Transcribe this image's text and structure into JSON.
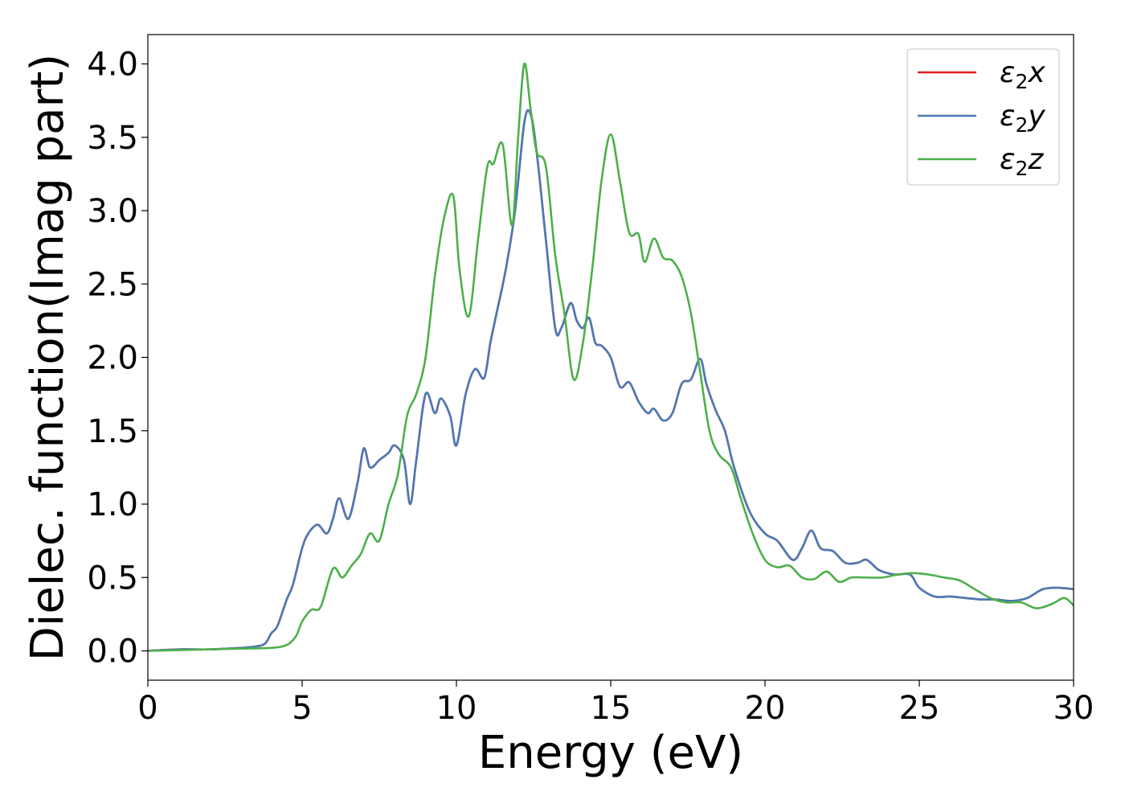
{
  "chart_data": {
    "type": "line",
    "xlabel": "Energy (eV)",
    "ylabel": "Dielec. function(Imag part)",
    "xlim": [
      0,
      30
    ],
    "ylim": [
      -0.2,
      4.2
    ],
    "xticks": [
      0,
      5,
      10,
      15,
      20,
      25,
      30
    ],
    "xtick_labels": [
      "0",
      "5",
      "10",
      "15",
      "20",
      "25",
      "30"
    ],
    "yticks": [
      0.0,
      0.5,
      1.0,
      1.5,
      2.0,
      2.5,
      3.0,
      3.5,
      4.0
    ],
    "ytick_labels": [
      "0.0",
      "0.5",
      "1.0",
      "1.5",
      "2.0",
      "2.5",
      "3.0",
      "3.5",
      "4.0"
    ],
    "grid": false,
    "legend_position": "top-right",
    "series": [
      {
        "name": "ε2x",
        "legend_base": "ε",
        "legend_sub": "2",
        "legend_var": "x",
        "color": "#e41a1c",
        "x": [
          0,
          1,
          2,
          3,
          3.5,
          3.8,
          4.0,
          4.2,
          4.5,
          4.7,
          5.0,
          5.2,
          5.5,
          5.8,
          6.0,
          6.2,
          6.5,
          6.8,
          7.0,
          7.2,
          7.5,
          7.8,
          8.0,
          8.3,
          8.5,
          8.7,
          9.0,
          9.3,
          9.5,
          9.8,
          10.0,
          10.3,
          10.6,
          10.9,
          11.1,
          11.3,
          11.6,
          11.9,
          12.2,
          12.4,
          12.6,
          12.9,
          13.2,
          13.4,
          13.7,
          13.9,
          14.1,
          14.3,
          14.5,
          14.7,
          15.0,
          15.3,
          15.6,
          15.9,
          16.2,
          16.4,
          16.7,
          17.0,
          17.3,
          17.6,
          17.9,
          18.1,
          18.4,
          18.7,
          19.0,
          19.5,
          20.0,
          20.4,
          20.9,
          21.2,
          21.5,
          21.8,
          22.2,
          22.6,
          23.0,
          23.3,
          23.7,
          24.2,
          24.7,
          25.0,
          25.5,
          26.0,
          26.5,
          27.0,
          27.5,
          28.0,
          28.5,
          29.0,
          29.5,
          30.0
        ],
        "y": [
          0,
          0.01,
          0.01,
          0.02,
          0.03,
          0.05,
          0.12,
          0.17,
          0.35,
          0.45,
          0.7,
          0.8,
          0.86,
          0.8,
          0.9,
          1.04,
          0.9,
          1.15,
          1.38,
          1.25,
          1.3,
          1.35,
          1.4,
          1.3,
          1.0,
          1.3,
          1.75,
          1.62,
          1.72,
          1.6,
          1.4,
          1.75,
          1.92,
          1.86,
          2.1,
          2.3,
          2.6,
          3.0,
          3.6,
          3.66,
          3.4,
          2.8,
          2.2,
          2.2,
          2.37,
          2.25,
          2.2,
          2.27,
          2.1,
          2.08,
          2.0,
          1.8,
          1.83,
          1.7,
          1.62,
          1.65,
          1.57,
          1.62,
          1.82,
          1.85,
          1.99,
          1.82,
          1.64,
          1.5,
          1.25,
          0.95,
          0.8,
          0.75,
          0.62,
          0.7,
          0.82,
          0.7,
          0.68,
          0.6,
          0.6,
          0.62,
          0.55,
          0.52,
          0.52,
          0.43,
          0.37,
          0.37,
          0.36,
          0.35,
          0.35,
          0.34,
          0.36,
          0.42,
          0.43,
          0.42
        ]
      },
      {
        "name": "ε2y",
        "legend_base": "ε",
        "legend_sub": "2",
        "legend_var": "y",
        "color": "#4a7ab5",
        "x": [
          0,
          1,
          2,
          3,
          3.5,
          3.8,
          4.0,
          4.2,
          4.5,
          4.7,
          5.0,
          5.2,
          5.5,
          5.8,
          6.0,
          6.2,
          6.5,
          6.8,
          7.0,
          7.2,
          7.5,
          7.8,
          8.0,
          8.3,
          8.5,
          8.7,
          9.0,
          9.3,
          9.5,
          9.8,
          10.0,
          10.3,
          10.6,
          10.9,
          11.1,
          11.3,
          11.6,
          11.9,
          12.2,
          12.4,
          12.6,
          12.9,
          13.2,
          13.4,
          13.7,
          13.9,
          14.1,
          14.3,
          14.5,
          14.7,
          15.0,
          15.3,
          15.6,
          15.9,
          16.2,
          16.4,
          16.7,
          17.0,
          17.3,
          17.6,
          17.9,
          18.1,
          18.4,
          18.7,
          19.0,
          19.5,
          20.0,
          20.4,
          20.9,
          21.2,
          21.5,
          21.8,
          22.2,
          22.6,
          23.0,
          23.3,
          23.7,
          24.2,
          24.7,
          25.0,
          25.5,
          26.0,
          26.5,
          27.0,
          27.5,
          28.0,
          28.5,
          29.0,
          29.5,
          30.0
        ],
        "y": [
          0,
          0.01,
          0.01,
          0.02,
          0.03,
          0.05,
          0.12,
          0.17,
          0.35,
          0.45,
          0.7,
          0.8,
          0.86,
          0.8,
          0.9,
          1.04,
          0.9,
          1.15,
          1.38,
          1.25,
          1.3,
          1.35,
          1.4,
          1.3,
          1.0,
          1.3,
          1.75,
          1.62,
          1.72,
          1.6,
          1.4,
          1.75,
          1.92,
          1.86,
          2.1,
          2.3,
          2.6,
          3.0,
          3.6,
          3.66,
          3.4,
          2.8,
          2.2,
          2.2,
          2.37,
          2.25,
          2.2,
          2.27,
          2.1,
          2.08,
          2.0,
          1.8,
          1.83,
          1.7,
          1.62,
          1.65,
          1.57,
          1.62,
          1.82,
          1.85,
          1.99,
          1.82,
          1.64,
          1.5,
          1.25,
          0.95,
          0.8,
          0.75,
          0.62,
          0.7,
          0.82,
          0.7,
          0.68,
          0.6,
          0.6,
          0.62,
          0.55,
          0.52,
          0.52,
          0.43,
          0.37,
          0.37,
          0.36,
          0.35,
          0.35,
          0.34,
          0.36,
          0.42,
          0.43,
          0.42
        ]
      },
      {
        "name": "ε2z",
        "legend_base": "ε",
        "legend_sub": "2",
        "legend_var": "z",
        "color": "#4daf4a",
        "x": [
          0,
          1,
          2,
          3,
          4.0,
          4.5,
          4.8,
          5.0,
          5.3,
          5.6,
          6.0,
          6.3,
          6.6,
          6.9,
          7.2,
          7.5,
          7.8,
          8.1,
          8.4,
          8.7,
          9.0,
          9.3,
          9.6,
          9.9,
          10.1,
          10.4,
          10.7,
          11.0,
          11.2,
          11.5,
          11.8,
          12.0,
          12.2,
          12.4,
          12.6,
          12.9,
          13.2,
          13.5,
          13.8,
          14.1,
          14.4,
          14.7,
          15.0,
          15.3,
          15.6,
          15.9,
          16.1,
          16.4,
          16.7,
          17.0,
          17.3,
          17.6,
          17.9,
          18.2,
          18.5,
          18.9,
          19.2,
          19.6,
          20.0,
          20.4,
          20.8,
          21.2,
          21.6,
          22.0,
          22.4,
          22.8,
          23.2,
          23.8,
          24.3,
          24.8,
          25.3,
          25.8,
          26.3,
          26.8,
          27.3,
          27.8,
          28.3,
          28.8,
          29.3,
          29.7,
          30.0
        ],
        "y": [
          0,
          0.005,
          0.01,
          0.015,
          0.02,
          0.04,
          0.1,
          0.2,
          0.28,
          0.3,
          0.56,
          0.5,
          0.58,
          0.66,
          0.8,
          0.75,
          1.0,
          1.2,
          1.6,
          1.75,
          2.0,
          2.55,
          2.95,
          3.1,
          2.6,
          2.28,
          2.8,
          3.3,
          3.32,
          3.45,
          2.9,
          3.5,
          4.0,
          3.7,
          3.4,
          3.3,
          2.7,
          2.3,
          1.85,
          2.1,
          2.6,
          3.2,
          3.52,
          3.2,
          2.85,
          2.84,
          2.65,
          2.81,
          2.68,
          2.66,
          2.55,
          2.3,
          1.9,
          1.5,
          1.34,
          1.25,
          1.05,
          0.8,
          0.62,
          0.57,
          0.58,
          0.5,
          0.49,
          0.54,
          0.47,
          0.5,
          0.5,
          0.5,
          0.52,
          0.53,
          0.52,
          0.5,
          0.48,
          0.42,
          0.36,
          0.33,
          0.33,
          0.29,
          0.32,
          0.36,
          0.31
        ]
      }
    ]
  }
}
